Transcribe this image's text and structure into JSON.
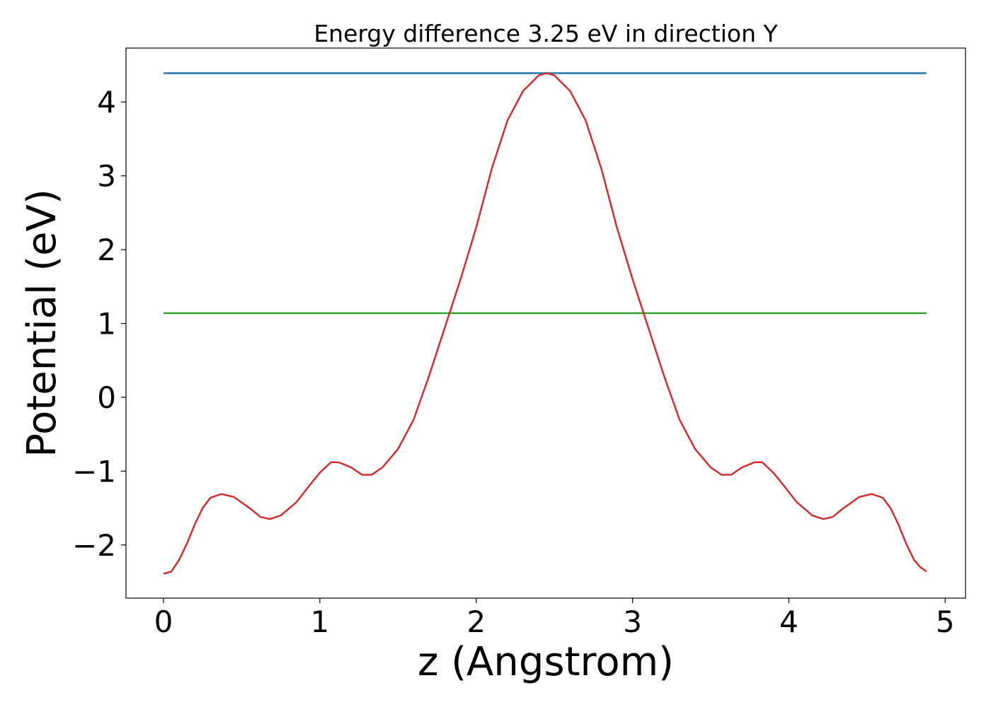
{
  "chart_data": {
    "type": "line",
    "title": "Energy difference 3.25 eV in direction Y",
    "xlabel": "z (Angstrom)",
    "ylabel": "Potential (eV)",
    "xlim": [
      -0.24,
      5.13
    ],
    "ylim": [
      -2.72,
      4.73
    ],
    "xticks": [
      0,
      1,
      2,
      3,
      4,
      5
    ],
    "yticks": [
      {
        "value": -2,
        "label": "−2"
      },
      {
        "value": -1,
        "label": "−1"
      },
      0,
      1,
      2,
      3,
      4
    ],
    "grid": false,
    "series": [
      {
        "color": "#1f77b4",
        "x": [
          0,
          4.88
        ],
        "values": [
          4.39,
          4.39
        ]
      },
      {
        "color": "#2ca02c",
        "x": [
          0,
          4.88
        ],
        "values": [
          1.14,
          1.14
        ]
      },
      {
        "color": "#d62728",
        "x": [
          0,
          0.05,
          0.1,
          0.15,
          0.2,
          0.25,
          0.3,
          0.37,
          0.45,
          0.55,
          0.62,
          0.68,
          0.75,
          0.85,
          0.95,
          1.0,
          1.07,
          1.12,
          1.2,
          1.27,
          1.33,
          1.4,
          1.5,
          1.6,
          1.7,
          1.8,
          1.9,
          2.0,
          2.1,
          2.2,
          2.3,
          2.4,
          2.45,
          2.5,
          2.6,
          2.7,
          2.8,
          2.9,
          3.0,
          3.1,
          3.2,
          3.3,
          3.4,
          3.5,
          3.57,
          3.63,
          3.7,
          3.78,
          3.83,
          3.9,
          3.95,
          4.05,
          4.15,
          4.22,
          4.28,
          4.35,
          4.45,
          4.53,
          4.6,
          4.65,
          4.7,
          4.75,
          4.8,
          4.84,
          4.88
        ],
        "values": [
          -2.39,
          -2.36,
          -2.2,
          -1.98,
          -1.72,
          -1.5,
          -1.36,
          -1.31,
          -1.35,
          -1.5,
          -1.62,
          -1.65,
          -1.6,
          -1.42,
          -1.15,
          -1.02,
          -0.88,
          -0.88,
          -0.95,
          -1.05,
          -1.05,
          -0.95,
          -0.7,
          -0.3,
          0.3,
          0.95,
          1.6,
          2.3,
          3.1,
          3.75,
          4.15,
          4.36,
          4.39,
          4.36,
          4.15,
          3.75,
          3.1,
          2.3,
          1.6,
          0.95,
          0.3,
          -0.3,
          -0.7,
          -0.95,
          -1.05,
          -1.05,
          -0.95,
          -0.88,
          -0.88,
          -1.02,
          -1.15,
          -1.42,
          -1.6,
          -1.65,
          -1.62,
          -1.5,
          -1.35,
          -1.31,
          -1.36,
          -1.5,
          -1.72,
          -1.98,
          -2.2,
          -2.3,
          -2.36
        ]
      }
    ]
  }
}
